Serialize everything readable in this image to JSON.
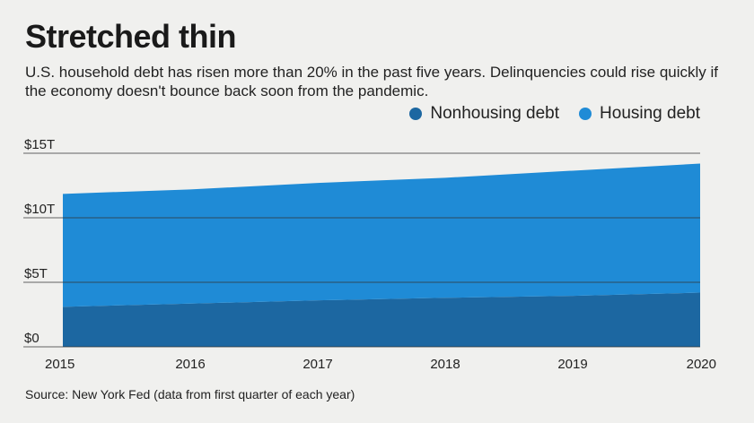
{
  "header": {
    "title": "Stretched thin",
    "subtitle": "U.S. household debt has risen more than 20% in the past five years. Delinquencies could rise quickly if the economy doesn't bounce back soon from the pandemic."
  },
  "source": "Source: New York Fed (data from first quarter of each year)",
  "colors": {
    "nonhousing": "#1c67a1",
    "housing": "#1f8bd6",
    "background": "#f0f0ee",
    "gridline": "#333333"
  },
  "chart_data": {
    "type": "area",
    "stacked": true,
    "x": [
      2015,
      2016,
      2017,
      2018,
      2019,
      2020
    ],
    "xlabels": [
      "2015",
      "2016",
      "2017",
      "2018",
      "2019",
      "2020"
    ],
    "ylim": [
      0,
      15
    ],
    "yticks": [
      0,
      5,
      10,
      15
    ],
    "ytick_labels": [
      "$0",
      "$5T",
      "$10T",
      "$15T"
    ],
    "legend": {
      "position": "top-right"
    },
    "series": [
      {
        "name": "Nonhousing debt",
        "values": [
          3.1,
          3.35,
          3.6,
          3.8,
          3.95,
          4.2
        ]
      },
      {
        "name": "Housing debt",
        "values": [
          8.75,
          8.85,
          9.1,
          9.3,
          9.7,
          10.0
        ]
      }
    ]
  }
}
